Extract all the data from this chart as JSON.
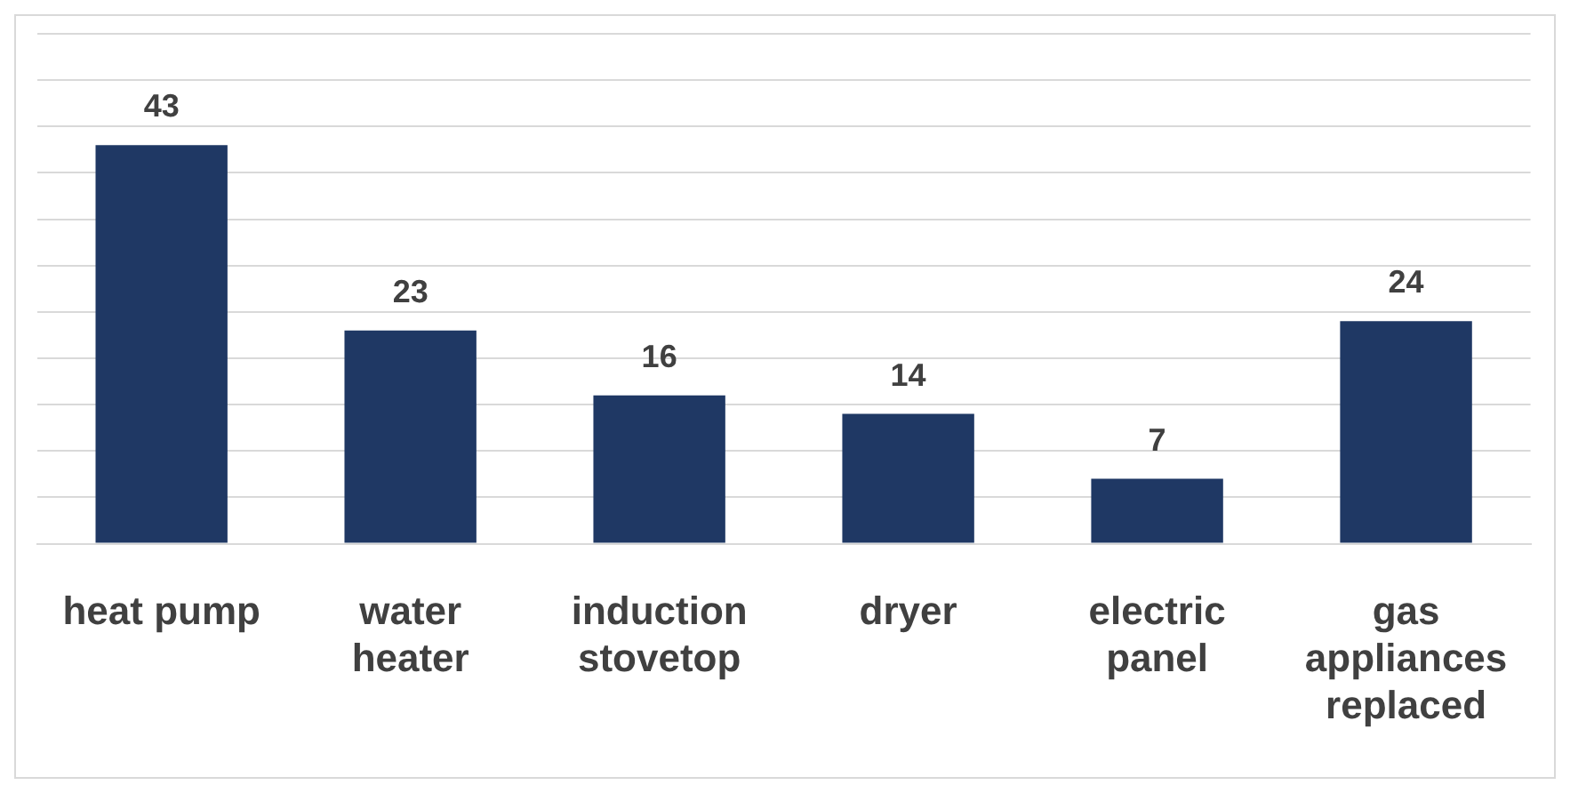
{
  "chart_data": {
    "type": "bar",
    "categories": [
      "heat pump",
      "water heater",
      "induction stovetop",
      "dryer",
      "electric panel",
      "gas appliances replaced"
    ],
    "values": [
      43,
      23,
      16,
      14,
      7,
      24
    ],
    "color": "#1f3864",
    "ylim": [
      0,
      55
    ],
    "yticks": [
      {
        "value": 0,
        "label": null
      },
      {
        "value": 5,
        "label": null
      },
      {
        "value": 10,
        "label": null
      },
      {
        "value": 15,
        "label": null
      },
      {
        "value": 20,
        "label": null
      },
      {
        "value": 25,
        "label": null
      },
      {
        "value": 30,
        "label": null
      },
      {
        "value": 35,
        "label": null
      },
      {
        "value": 40,
        "label": null
      },
      {
        "value": 45,
        "label": null
      },
      {
        "value": 50,
        "label": null
      },
      {
        "value": 55,
        "label": null
      }
    ],
    "tick_labels": "x",
    "grid": "y",
    "data_labels": true,
    "legend": false
  }
}
